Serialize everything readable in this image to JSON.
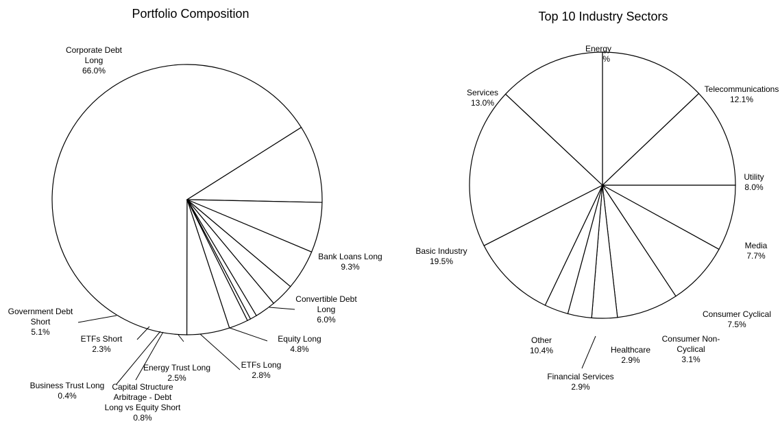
{
  "chart_data": [
    {
      "type": "pie",
      "title": "Portfolio Composition",
      "slices": [
        {
          "label": [
            "Corporate Debt",
            "Long",
            "66.0%"
          ],
          "value": 66.0
        },
        {
          "label": [
            "Bank Loans Long",
            "9.3%"
          ],
          "value": 9.3
        },
        {
          "label": [
            "Convertible Debt",
            "Long",
            "6.0%"
          ],
          "value": 6.0
        },
        {
          "label": [
            "Equity Long",
            "4.8%"
          ],
          "value": 4.8
        },
        {
          "label": [
            "ETFs Long",
            "2.8%"
          ],
          "value": 2.8
        },
        {
          "label": [
            "Energy Trust Long",
            "2.5%"
          ],
          "value": 2.5
        },
        {
          "label": [
            "Capital Structure",
            "Arbitrage - Debt",
            "Long vs Equity Short",
            "0.8%"
          ],
          "value": 0.8
        },
        {
          "label": [
            "Business Trust Long",
            "0.4%"
          ],
          "value": 0.4
        },
        {
          "label": [
            "ETFs Short",
            "2.3%"
          ],
          "value": 2.3
        },
        {
          "label": [
            "Government Debt",
            "Short",
            "5.1%"
          ],
          "value": 5.1
        }
      ]
    },
    {
      "type": "pie",
      "title": "Top 10 Industry Sectors",
      "slices": [
        {
          "label": [
            "Energy",
            "12.9%"
          ],
          "value": 12.9
        },
        {
          "label": [
            "Telecommunications",
            "12.1%"
          ],
          "value": 12.1
        },
        {
          "label": [
            "Utility",
            "8.0%"
          ],
          "value": 8.0
        },
        {
          "label": [
            "Media",
            "7.7%"
          ],
          "value": 7.7
        },
        {
          "label": [
            "Consumer Cyclical",
            "7.5%"
          ],
          "value": 7.5
        },
        {
          "label": [
            "Consumer Non-",
            "Cyclical",
            "3.1%"
          ],
          "value": 3.1
        },
        {
          "label": [
            "Healthcare",
            "2.9%"
          ],
          "value": 2.9
        },
        {
          "label": [
            "Financial Services",
            "2.9%"
          ],
          "value": 2.9
        },
        {
          "label": [
            "Other",
            "10.4%"
          ],
          "value": 10.4
        },
        {
          "label": [
            "Basic Industry",
            "19.5%"
          ],
          "value": 19.5
        },
        {
          "label": [
            "Services",
            "13.0%"
          ],
          "value": 13.0
        }
      ]
    }
  ]
}
